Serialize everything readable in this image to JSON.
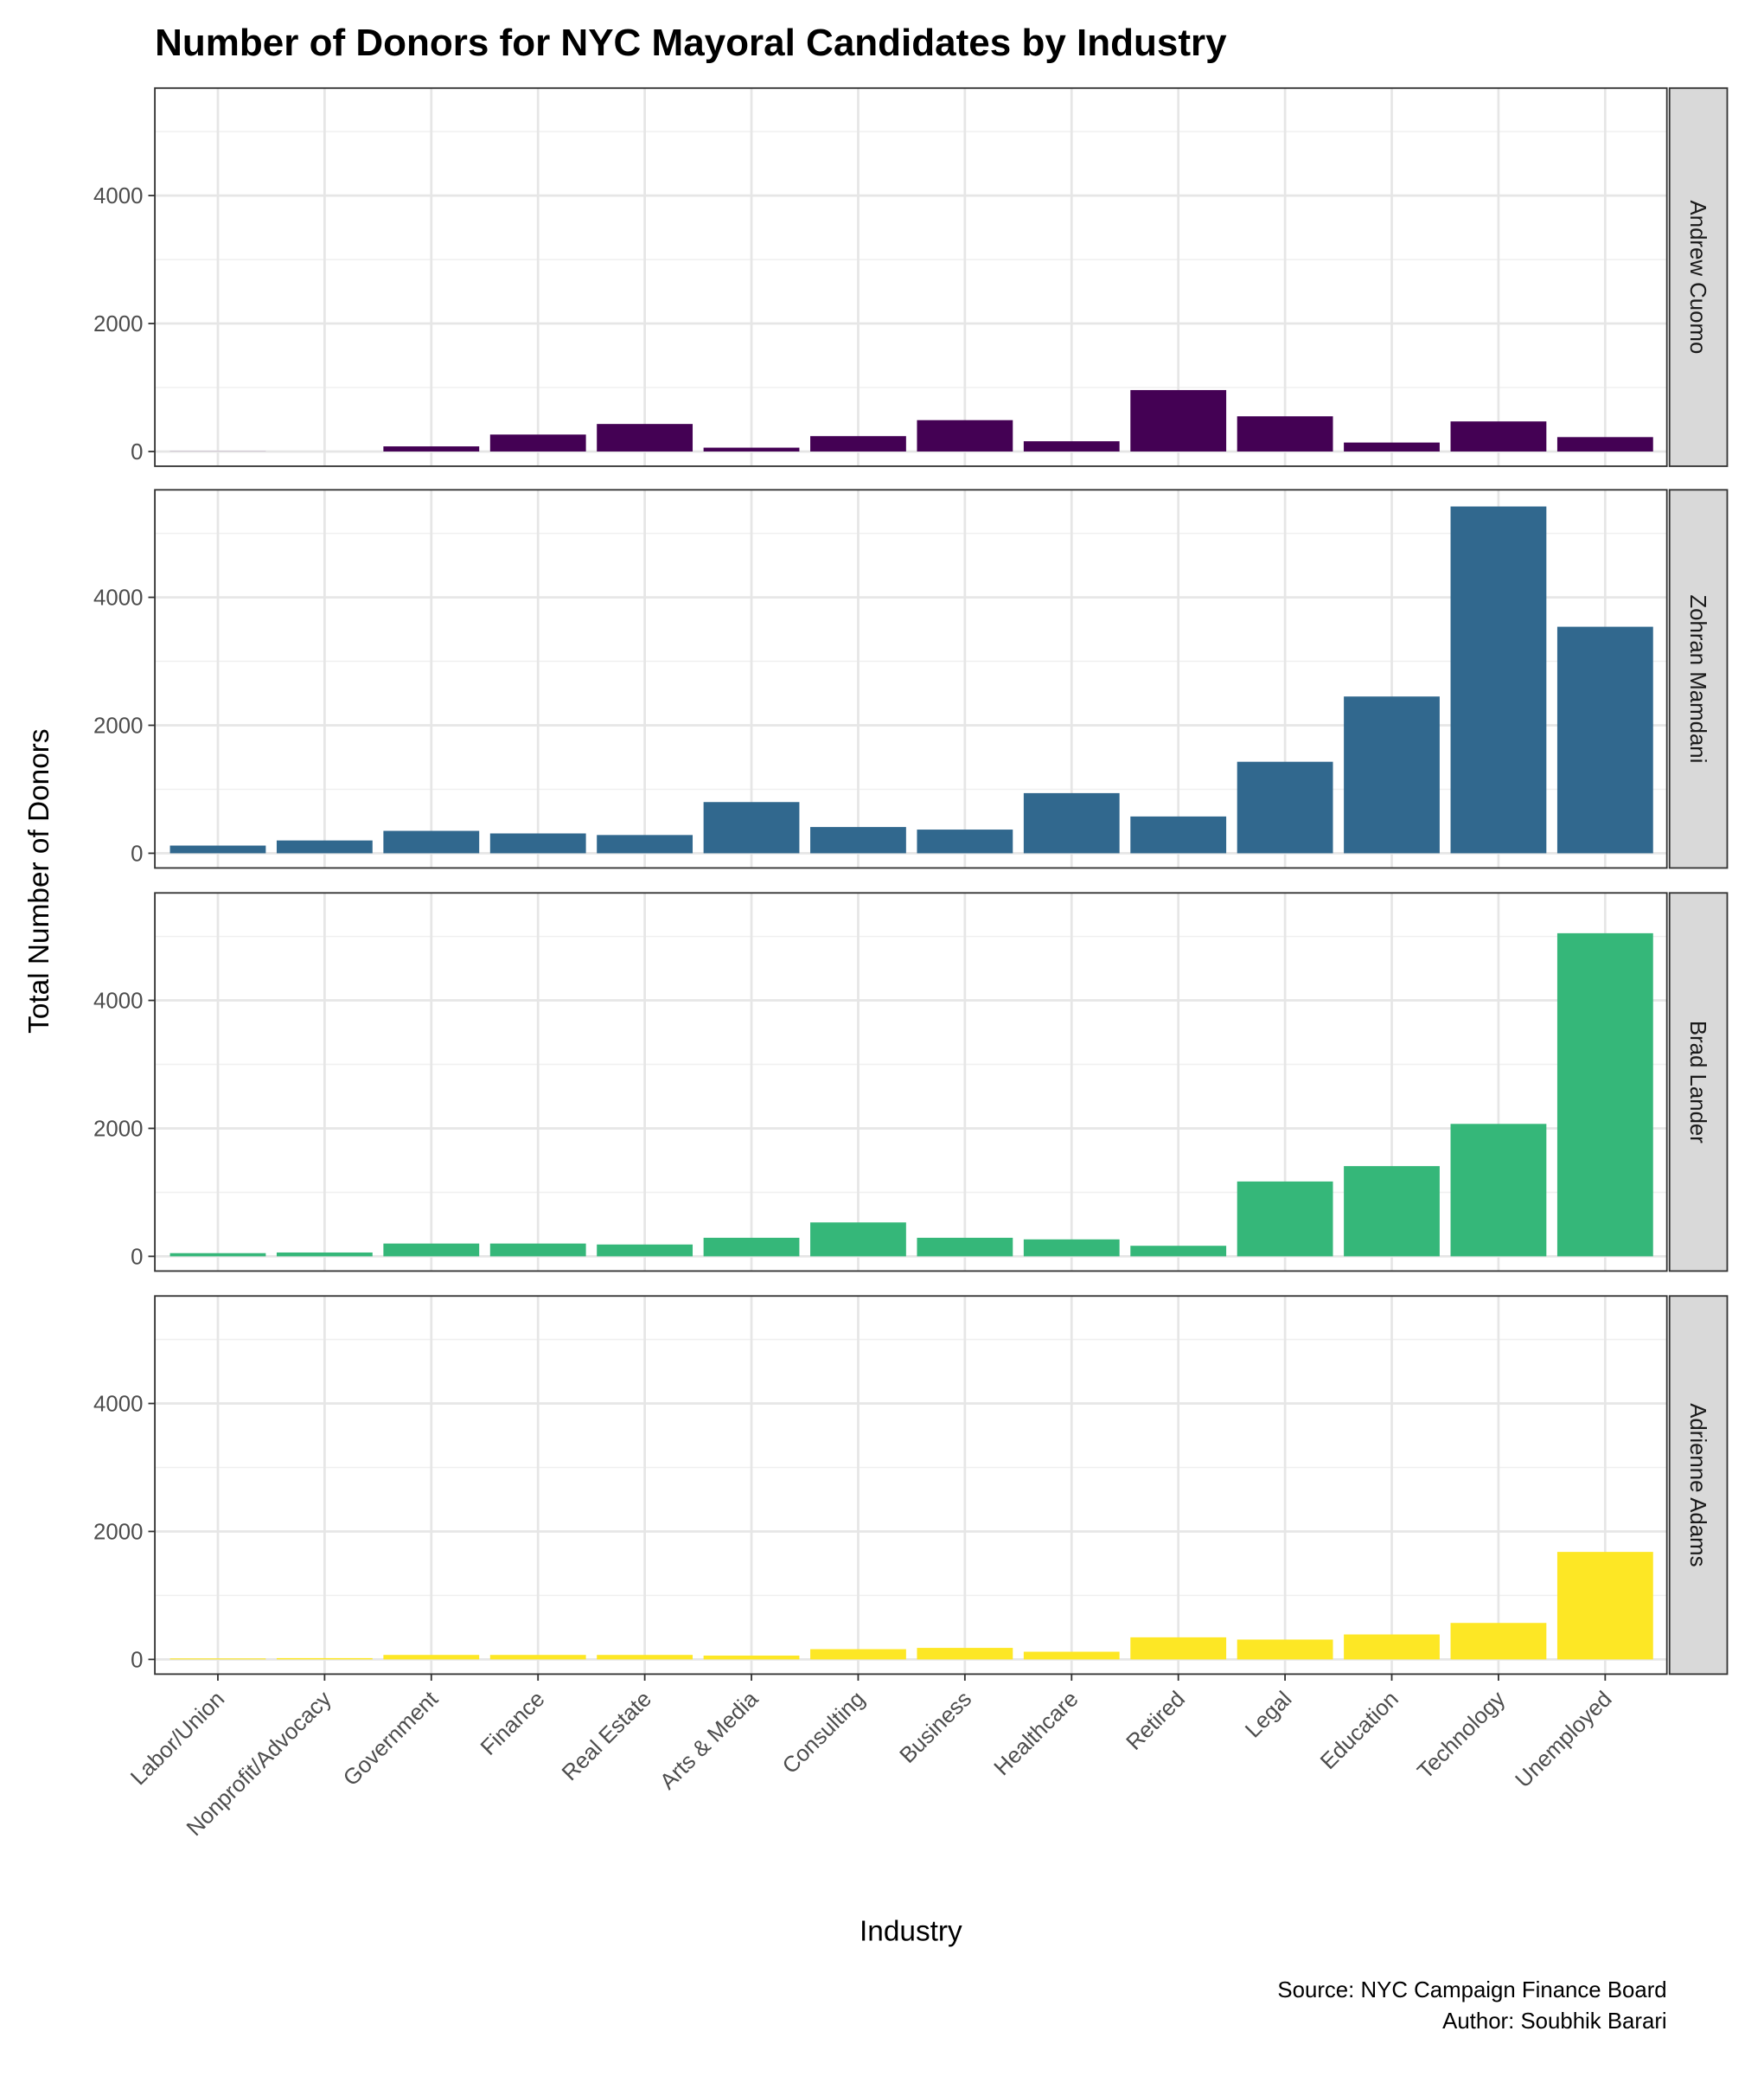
{
  "chart_data": {
    "type": "bar",
    "title": "Number of Donors for NYC Mayoral Candidates by Industry",
    "xlabel": "Industry",
    "ylabel": "Total Number of Donors",
    "caption": [
      "Source: NYC Campaign Finance Board",
      "Author: Soubhik Barari"
    ],
    "ylim": [
      -230,
      5680
    ],
    "yticks": [
      0,
      2000,
      4000
    ],
    "ytick_labels": [
      "0",
      "2000",
      "4000"
    ],
    "grid": true,
    "legend": "none",
    "categories": [
      "Labor/Union",
      "Nonprofit/Advocacy",
      "Government",
      "Finance",
      "Real Estate",
      "Arts & Media",
      "Consulting",
      "Business",
      "Healthcare",
      "Retired",
      "Legal",
      "Education",
      "Technology",
      "Unemployed"
    ],
    "series": [
      {
        "name": "Andrew Cuomo",
        "color": "#440154",
        "values": [
          5,
          0,
          80,
          265,
          430,
          60,
          240,
          490,
          160,
          960,
          550,
          140,
          470,
          225
        ]
      },
      {
        "name": "Zohran Mamdani",
        "color": "#31688e",
        "values": [
          120,
          200,
          350,
          310,
          285,
          800,
          410,
          370,
          940,
          575,
          1430,
          2450,
          5420,
          3540
        ]
      },
      {
        "name": "Brad Lander",
        "color": "#35b779",
        "values": [
          50,
          60,
          200,
          200,
          185,
          290,
          530,
          290,
          265,
          165,
          1170,
          1410,
          2070,
          5050
        ]
      },
      {
        "name": "Adrienne Adams",
        "color": "#fde725",
        "values": [
          15,
          20,
          70,
          70,
          70,
          60,
          160,
          180,
          120,
          345,
          310,
          390,
          570,
          1680
        ]
      }
    ]
  }
}
